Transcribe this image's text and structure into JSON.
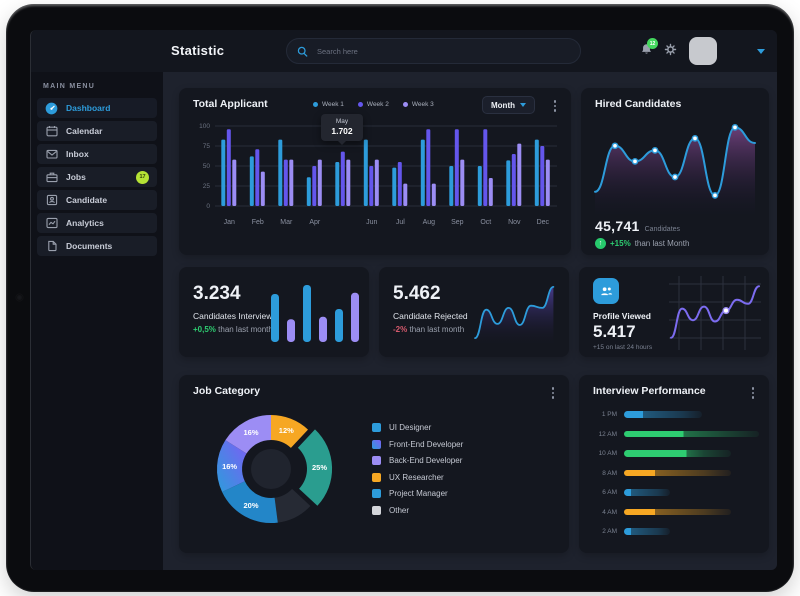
{
  "colors": {
    "accent_blue": "#2d9cdb",
    "violet": "#6456ec",
    "light_purple": "#9c8df4",
    "teal": "#2a9d8f",
    "orange": "#f6a723",
    "green": "#2ecc71",
    "red": "#d65a6d",
    "lime_badge": "#b5e235",
    "card_bg": "#14171f",
    "main_bg": "#1e222d"
  },
  "topbar": {
    "title": "Statistic",
    "search_placeholder": "Search here",
    "notification_badge": "12"
  },
  "sidebar": {
    "section_label": "MAIN MENU",
    "items": [
      {
        "label": "Dashboard",
        "icon": "dashboard-icon",
        "active": true
      },
      {
        "label": "Calendar",
        "icon": "calendar-icon",
        "active": false
      },
      {
        "label": "Inbox",
        "icon": "inbox-icon",
        "active": false
      },
      {
        "label": "Jobs",
        "icon": "jobs-icon",
        "active": false,
        "badge": "17"
      },
      {
        "label": "Candidate",
        "icon": "candidate-icon",
        "active": false
      },
      {
        "label": "Analytics",
        "icon": "analytics-icon",
        "active": false
      },
      {
        "label": "Documents",
        "icon": "documents-icon",
        "active": false
      }
    ]
  },
  "total_applicant": {
    "title": "Total Applicant",
    "period": "Month",
    "tooltip": {
      "label": "May",
      "value": "1.702"
    },
    "chart_data": {
      "type": "bar",
      "x_labels": [
        "Jan",
        "Feb",
        "Mar",
        "Apr",
        "",
        "Jun",
        "Jul",
        "Aug",
        "Sep",
        "Oct",
        "Nov",
        "Dec"
      ],
      "y_ticks": [
        100,
        75,
        50,
        25,
        0
      ],
      "ylim": [
        0,
        100
      ],
      "series": [
        {
          "name": "Week 1",
          "color": "#2d9cdb",
          "values": [
            83,
            62,
            83,
            36,
            55,
            83,
            48,
            83,
            50,
            50,
            57,
            83
          ]
        },
        {
          "name": "Week 2",
          "color": "#6456ec",
          "values": [
            96,
            71,
            58,
            50,
            68,
            50,
            55,
            96,
            96,
            96,
            65,
            75
          ]
        },
        {
          "name": "Week 3",
          "color": "#9c8df4",
          "values": [
            58,
            43,
            58,
            58,
            58,
            58,
            28,
            28,
            58,
            35,
            78,
            58
          ]
        }
      ]
    }
  },
  "hired_candidates": {
    "title": "Hired Candidates",
    "value": "45,741",
    "unit": "Candidates",
    "delta": "+15%",
    "delta_note": "than last Month",
    "chart_data": {
      "type": "line",
      "points": [
        22,
        72,
        55,
        67,
        38,
        80,
        18,
        92,
        75
      ],
      "dots": [
        1,
        2,
        3,
        4,
        5,
        6,
        7
      ],
      "line_color": "#2d9cdb"
    }
  },
  "candidates_interview": {
    "value": "3.234",
    "label": "Candidates Interview",
    "delta": "+0,5%",
    "delta_note": "than last month",
    "chart_data": {
      "type": "bar",
      "values": [
        80,
        38,
        95,
        42,
        55,
        82
      ],
      "colors": [
        "#2d9cdb",
        "#9c8df4",
        "#2d9cdb",
        "#9c8df4",
        "#2d9cdb",
        "#9c8df4"
      ]
    }
  },
  "candidate_rejected": {
    "value": "5.462",
    "label": "Candidate Rejected",
    "delta": "-2%",
    "delta_note": "than last month",
    "chart_data": {
      "type": "area",
      "points": [
        5,
        55,
        30,
        58,
        28,
        62,
        58,
        95
      ],
      "line_color": "#2d9cdb"
    }
  },
  "profile_viewed": {
    "label": "Profile Viewed",
    "value": "5.417",
    "note": "+15 on last 24 hours",
    "chart_data": {
      "type": "line",
      "points": [
        12,
        55,
        38,
        58,
        36,
        52,
        68,
        62,
        88
      ],
      "marker_index": 5,
      "line_color": "#7c6cf0",
      "grid": true
    }
  },
  "job_category": {
    "title": "Job Category",
    "chart_data": {
      "type": "pie",
      "slices": [
        {
          "label": "UX Researcher",
          "value": 12,
          "text": "12%",
          "color": "#f6a723",
          "exploded": false
        },
        {
          "label": "UI Designer",
          "value": 25,
          "text": "25%",
          "color": "#2a9d8f",
          "exploded": true
        },
        {
          "label": "Other",
          "value": 11,
          "text": "",
          "color": "#262a34",
          "exploded": false
        },
        {
          "label": "Project Manager",
          "value": 20,
          "text": "20%",
          "color": "#2386c8",
          "exploded": false
        },
        {
          "label": "Front-End Developer",
          "value": 16,
          "text": "16%",
          "color": "gradient",
          "exploded": false
        },
        {
          "label": "Back-End Developer",
          "value": 16,
          "text": "16%",
          "color": "#9c8df4",
          "exploded": false
        }
      ]
    },
    "legend": [
      {
        "label": "UI Designer",
        "color": "#2d9cdb"
      },
      {
        "label": "Front-End Developer",
        "color": "gradient"
      },
      {
        "label": "Back-End Developer",
        "color": "#9c8df4"
      },
      {
        "label": "UX Researcher",
        "color": "#f6a723"
      },
      {
        "label": "Project Manager",
        "color": "#2d9cdb"
      },
      {
        "label": "Other",
        "color": "#d3d5da"
      }
    ]
  },
  "interview_performance": {
    "title": "Interview Performance",
    "chart_data": {
      "type": "bar",
      "rows": [
        {
          "label": "1 PM",
          "color": "#2d9cdb",
          "bright": 14,
          "total": 58
        },
        {
          "label": "12 AM",
          "color": "#2ecc71",
          "bright": 44,
          "total": 100
        },
        {
          "label": "10 AM",
          "color": "#2ecc71",
          "bright": 46,
          "total": 79
        },
        {
          "label": "8 AM",
          "color": "#f6a723",
          "bright": 23,
          "total": 79
        },
        {
          "label": "6 AM",
          "color": "#2d9cdb",
          "bright": 5,
          "total": 34
        },
        {
          "label": "4 AM",
          "color": "#f6a723",
          "bright": 23,
          "total": 79
        },
        {
          "label": "2 AM",
          "color": "#2d9cdb",
          "bright": 5,
          "total": 34
        }
      ]
    }
  }
}
